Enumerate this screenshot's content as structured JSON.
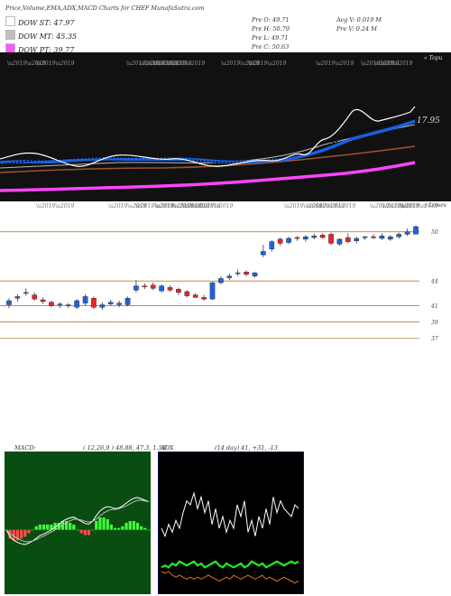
{
  "header": {
    "title": "Price,Volume,EMA,ADX,MACD Charts for CHEF MunafaSutra.com"
  },
  "legend": [
    {
      "label": "DOW ST: 47.97",
      "color": "#ffffff"
    },
    {
      "label": "DOW MT: 45.35",
      "color": "#bfbfbf"
    },
    {
      "label": "DOW PT: 39.77",
      "color": "#ff55ff"
    }
  ],
  "stats": {
    "open": "Pre  O: 49.71",
    "high": "Pre  H: 50.79",
    "low": "Pre  L: 49.71",
    "close": "Pre  C: 50.63",
    "avg_vol": "Avg V: 0.019 M",
    "pre_vol": "Pre  V: 0.24  M"
  },
  "ema_panel": {
    "right_label": "17.95",
    "top_corner_label": "« Topu",
    "colors": {
      "white": "#ffffff",
      "black": "#111111",
      "blue": "#1a5fe0",
      "brown": "#a0522d",
      "magenta": "#ff44ff"
    }
  },
  "chart_data": [
    {
      "type": "candlestick",
      "title": "",
      "corner_label": "« Lowes",
      "y_ticks": [
        "50",
        "44",
        "41",
        "39",
        "37"
      ],
      "ohlc": [
        [
          41.1,
          41.9,
          40.7,
          41.6
        ],
        [
          41.9,
          42.4,
          41.5,
          42.1
        ],
        [
          42.5,
          43.1,
          42.2,
          42.6
        ],
        [
          42.3,
          42.6,
          41.6,
          41.8
        ],
        [
          41.7,
          42.0,
          41.2,
          41.5
        ],
        [
          41.4,
          41.6,
          40.8,
          41.0
        ],
        [
          41.1,
          41.4,
          40.7,
          41.2
        ],
        [
          41.0,
          41.3,
          40.7,
          41.1
        ],
        [
          40.8,
          41.8,
          40.6,
          41.6
        ],
        [
          41.3,
          42.4,
          41.0,
          42.1
        ],
        [
          41.9,
          42.1,
          40.6,
          40.8
        ],
        [
          40.8,
          41.4,
          40.5,
          41.1
        ],
        [
          41.2,
          41.7,
          41.0,
          41.4
        ],
        [
          41.1,
          41.6,
          40.8,
          41.3
        ],
        [
          41.1,
          42.1,
          40.9,
          41.9
        ],
        [
          42.9,
          44.1,
          42.6,
          43.4
        ],
        [
          43.4,
          43.7,
          43.0,
          43.3
        ],
        [
          43.5,
          43.8,
          42.9,
          43.1
        ],
        [
          42.8,
          43.6,
          42.6,
          43.4
        ],
        [
          43.2,
          43.5,
          42.7,
          42.9
        ],
        [
          43.0,
          43.2,
          42.3,
          42.6
        ],
        [
          42.7,
          42.9,
          42.0,
          42.2
        ],
        [
          42.3,
          42.5,
          41.9,
          42.0
        ],
        [
          42.0,
          42.3,
          41.6,
          41.8
        ],
        [
          41.8,
          43.9,
          41.7,
          43.8
        ],
        [
          43.8,
          44.6,
          43.6,
          44.3
        ],
        [
          44.4,
          44.9,
          44.1,
          44.6
        ],
        [
          44.9,
          45.4,
          44.6,
          45.0
        ],
        [
          45.1,
          45.3,
          44.6,
          44.8
        ],
        [
          44.6,
          45.1,
          44.4,
          45.0
        ],
        [
          47.2,
          48.4,
          46.9,
          47.6
        ],
        [
          47.9,
          49.0,
          47.6,
          48.8
        ],
        [
          49.1,
          49.3,
          48.3,
          48.6
        ],
        [
          48.7,
          49.4,
          48.5,
          49.2
        ],
        [
          49.3,
          49.5,
          48.9,
          49.2
        ],
        [
          49.1,
          49.6,
          48.8,
          49.4
        ],
        [
          49.3,
          49.8,
          49.1,
          49.5
        ],
        [
          49.6,
          49.8,
          49.2,
          49.3
        ],
        [
          49.7,
          49.9,
          48.4,
          48.6
        ],
        [
          48.5,
          49.2,
          48.3,
          49.1
        ],
        [
          49.3,
          49.8,
          48.6,
          48.8
        ],
        [
          48.9,
          49.4,
          48.6,
          49.2
        ],
        [
          49.3,
          49.5,
          49.0,
          49.4
        ],
        [
          49.4,
          49.7,
          49.1,
          49.3
        ],
        [
          49.2,
          49.8,
          49.0,
          49.5
        ],
        [
          49.1,
          49.6,
          48.9,
          49.4
        ],
        [
          49.4,
          49.9,
          49.2,
          49.7
        ],
        [
          49.7,
          50.4,
          49.5,
          50.0
        ],
        [
          49.71,
          50.79,
          49.71,
          50.63
        ]
      ]
    },
    {
      "type": "line",
      "title": "MACD:",
      "params": "( 12,26,9 ) 48.88,  47.3,  1.58",
      "series": [
        {
          "values": [
            0,
            -1,
            -1.5,
            -1.8,
            -2.0,
            -2.1,
            -1.9,
            -1.6,
            -1.2,
            -0.8,
            -0.6,
            -0.3,
            0,
            0.4,
            0.7,
            1.2,
            1.5,
            1.7,
            1.8,
            1.5,
            1.2,
            0.9,
            0.8,
            1.2,
            2.0,
            2.7,
            3.1,
            3.3,
            3.2,
            3.0,
            3.1,
            3.4,
            3.8,
            4.2,
            4.5,
            4.6,
            4.4,
            4.2,
            4.0
          ]
        },
        {
          "values": [
            0,
            -0.5,
            -0.9,
            -1.2,
            -1.5,
            -1.7,
            -1.7,
            -1.6,
            -1.4,
            -1.1,
            -0.9,
            -0.6,
            -0.3,
            0,
            0.3,
            0.7,
            1.0,
            1.3,
            1.5,
            1.5,
            1.4,
            1.2,
            1.1,
            1.2,
            1.5,
            2.0,
            2.4,
            2.7,
            2.9,
            2.9,
            3.0,
            3.2,
            3.4,
            3.7,
            4.0,
            4.2,
            4.2,
            4.1,
            4.0
          ]
        }
      ],
      "histogram": [
        0,
        -0.5,
        -0.6,
        -0.6,
        -0.5,
        -0.4,
        -0.2,
        0,
        0.2,
        0.3,
        0.3,
        0.3,
        0.3,
        0.4,
        0.4,
        0.5,
        0.5,
        0.4,
        0.3,
        0,
        -0.2,
        -0.3,
        -0.3,
        0,
        0.5,
        0.7,
        0.7,
        0.6,
        0.3,
        0.1,
        0.1,
        0.2,
        0.4,
        0.5,
        0.5,
        0.4,
        0.2,
        0.1,
        0
      ]
    },
    {
      "type": "line",
      "title": "ADX",
      "params": "(14  day) 41,  +31,  -13",
      "series": [
        {
          "values": [
            30,
            26,
            32,
            28,
            34,
            30,
            38,
            44,
            42,
            48,
            40,
            46,
            38,
            44,
            32,
            40,
            30,
            36,
            28,
            34,
            30,
            42,
            36,
            44,
            28,
            34,
            26,
            36,
            30,
            40,
            32,
            46,
            38,
            44,
            40,
            38,
            36,
            42,
            40
          ]
        },
        {
          "values": [
            10,
            11,
            10,
            12,
            11,
            13,
            12,
            11,
            12,
            13,
            11,
            12,
            10,
            11,
            12,
            13,
            11,
            10,
            12,
            11,
            10,
            11,
            12,
            10,
            11,
            13,
            12,
            11,
            12,
            10,
            11,
            12,
            13,
            12,
            11,
            12,
            13,
            12,
            13
          ]
        },
        {
          "values": [
            8,
            7,
            8,
            6,
            5,
            6,
            5,
            4,
            5,
            4,
            5,
            4,
            5,
            6,
            5,
            4,
            3,
            4,
            5,
            4,
            6,
            5,
            4,
            5,
            6,
            5,
            4,
            5,
            6,
            4,
            5,
            4,
            3,
            4,
            5,
            4,
            3,
            2,
            3
          ]
        }
      ]
    }
  ]
}
